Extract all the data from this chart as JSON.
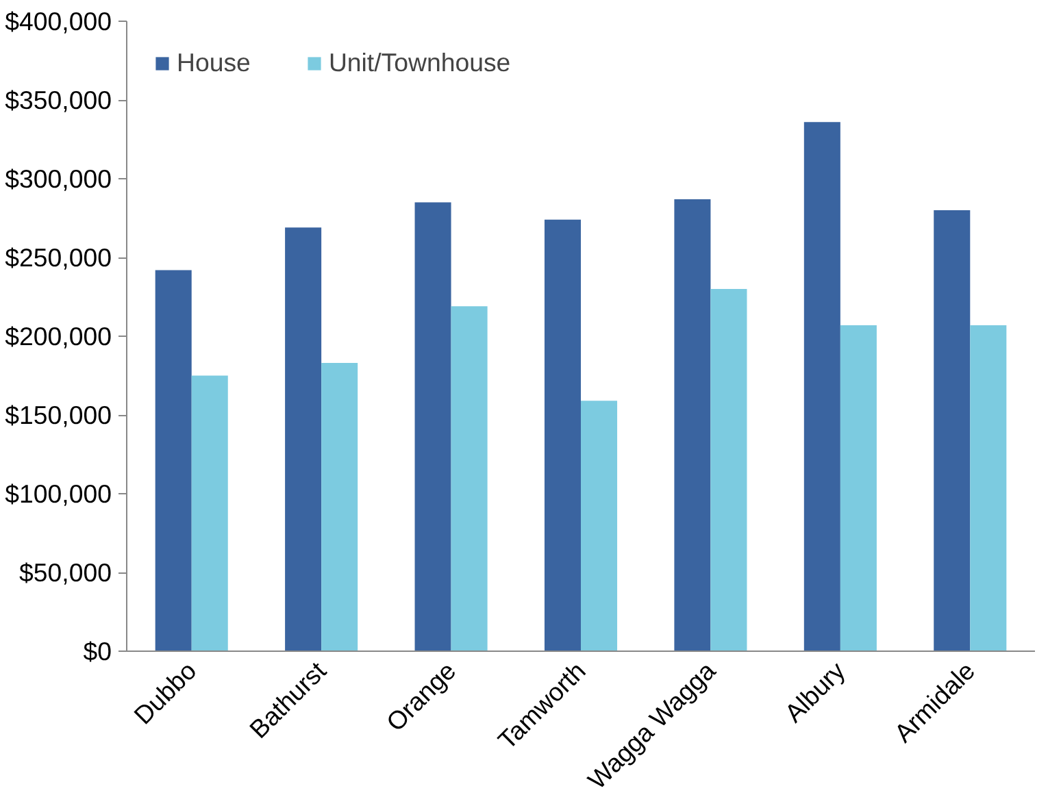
{
  "chart_data": {
    "type": "bar",
    "categories": [
      "Dubbo",
      "Bathurst",
      "Orange",
      "Tamworth",
      "Wagga Wagga",
      "Albury",
      "Armidale"
    ],
    "series": [
      {
        "name": "House",
        "color": "#3a64a0",
        "values": [
          242000,
          269000,
          285000,
          274000,
          287000,
          336000,
          280000
        ]
      },
      {
        "name": "Unit/Townhouse",
        "color": "#7ccbe0",
        "values": [
          175000,
          183000,
          219000,
          159000,
          230000,
          207000,
          207000
        ]
      }
    ],
    "ylim": [
      0,
      400000
    ],
    "yticks": [
      {
        "value": 0,
        "label": "$0"
      },
      {
        "value": 50000,
        "label": "$50,000"
      },
      {
        "value": 100000,
        "label": "$100,000"
      },
      {
        "value": 150000,
        "label": "$150,000"
      },
      {
        "value": 200000,
        "label": "$200,000"
      },
      {
        "value": 250000,
        "label": "$250,000"
      },
      {
        "value": 300000,
        "label": "$300,000"
      },
      {
        "value": 350000,
        "label": "$350,000"
      },
      {
        "value": 400000,
        "label": "$400,000"
      }
    ],
    "grid": false,
    "legend": "top left"
  }
}
